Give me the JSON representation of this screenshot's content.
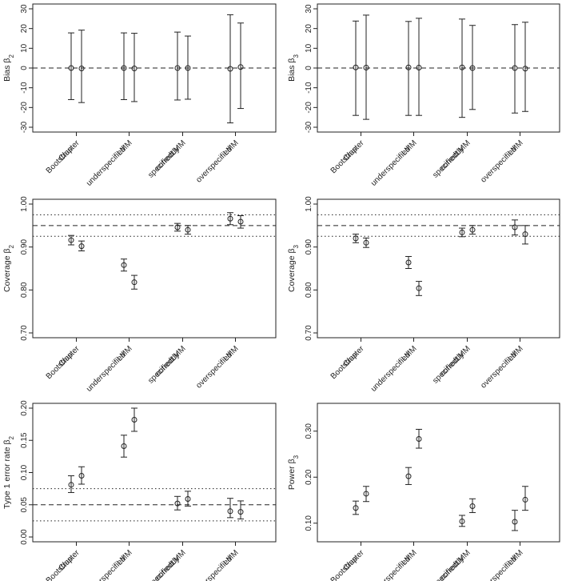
{
  "chart_data": [
    {
      "type": "errorbar",
      "ylabel": "Bias",
      "ysub": "2",
      "ylim": [
        -30,
        30
      ],
      "yticks": [
        -30,
        -20,
        -10,
        0,
        10,
        20,
        30
      ],
      "tick_labels": [
        "-30",
        "-20",
        "-10",
        "0",
        "10",
        "20",
        "30"
      ],
      "hlines": [
        {
          "y": 0,
          "style": "dashed"
        }
      ],
      "categories": [
        [
          "Cluster",
          "Bootstrap"
        ],
        [
          "LMM",
          "underspecified"
        ],
        [
          "LMM",
          "correctly",
          "specified"
        ],
        [
          "LMM",
          "overspecified"
        ]
      ],
      "points": [
        {
          "est": 0.0,
          "lo": -16.0,
          "hi": 17.8
        },
        {
          "est": -0.2,
          "lo": -17.5,
          "hi": 19.2
        },
        {
          "est": 0.0,
          "lo": -16.0,
          "hi": 17.8
        },
        {
          "est": -0.2,
          "lo": -17.0,
          "hi": 17.6
        },
        {
          "est": 0.0,
          "lo": -16.2,
          "hi": 18.2
        },
        {
          "est": 0.0,
          "lo": -15.8,
          "hi": 16.2
        },
        {
          "est": -0.4,
          "lo": -27.8,
          "hi": 27.0
        },
        {
          "est": 0.5,
          "lo": -20.5,
          "hi": 22.8
        }
      ]
    },
    {
      "type": "errorbar",
      "ylabel": "Bias",
      "ysub": "3",
      "ylim": [
        -30,
        30
      ],
      "yticks": [
        -30,
        -20,
        -10,
        0,
        10,
        20,
        30
      ],
      "tick_labels": [
        "-30",
        "-20",
        "-10",
        "0",
        "10",
        "20",
        "30"
      ],
      "hlines": [
        {
          "y": 0,
          "style": "dashed"
        }
      ],
      "categories": [
        [
          "Cluster",
          "Bootstrap"
        ],
        [
          "LMM",
          "underspecified"
        ],
        [
          "LMM",
          "correctly",
          "specified"
        ],
        [
          "LMM",
          "overspecified"
        ]
      ],
      "points": [
        {
          "est": 0.3,
          "lo": -24.0,
          "hi": 23.8
        },
        {
          "est": 0.2,
          "lo": -26.0,
          "hi": 26.8
        },
        {
          "est": 0.3,
          "lo": -24.0,
          "hi": 23.6
        },
        {
          "est": 0.2,
          "lo": -24.0,
          "hi": 25.2
        },
        {
          "est": 0.3,
          "lo": -25.0,
          "hi": 24.8
        },
        {
          "est": 0.0,
          "lo": -21.0,
          "hi": 21.6
        },
        {
          "est": 0.0,
          "lo": -22.8,
          "hi": 22.0
        },
        {
          "est": -0.3,
          "lo": -22.0,
          "hi": 23.2
        }
      ]
    },
    {
      "type": "errorbar",
      "ylabel": "Coverage",
      "ysub": "2",
      "ylim": [
        0.7,
        1.0
      ],
      "yticks": [
        0.7,
        0.8,
        0.9,
        1.0
      ],
      "tick_labels": [
        "0.70",
        "0.80",
        "0.90",
        "1.00"
      ],
      "hlines": [
        {
          "y": 0.95,
          "style": "dashed"
        },
        {
          "y": 0.975,
          "style": "dotted"
        },
        {
          "y": 0.925,
          "style": "dotted"
        }
      ],
      "categories": [
        [
          "Cluster",
          "Bootstrap"
        ],
        [
          "LMM",
          "underspecified"
        ],
        [
          "LMM",
          "correctly",
          "specified"
        ],
        [
          "LMM",
          "overspecified"
        ]
      ],
      "points": [
        {
          "est": 0.916,
          "lo": 0.905,
          "hi": 0.927
        },
        {
          "est": 0.902,
          "lo": 0.891,
          "hi": 0.914
        },
        {
          "est": 0.858,
          "lo": 0.844,
          "hi": 0.872
        },
        {
          "est": 0.818,
          "lo": 0.802,
          "hi": 0.834
        },
        {
          "est": 0.946,
          "lo": 0.937,
          "hi": 0.955
        },
        {
          "est": 0.94,
          "lo": 0.93,
          "hi": 0.95
        },
        {
          "est": 0.966,
          "lo": 0.952,
          "hi": 0.98
        },
        {
          "est": 0.959,
          "lo": 0.944,
          "hi": 0.973
        }
      ]
    },
    {
      "type": "errorbar",
      "ylabel": "Coverage",
      "ysub": "3",
      "ylim": [
        0.7,
        1.0
      ],
      "yticks": [
        0.7,
        0.8,
        0.9,
        1.0
      ],
      "tick_labels": [
        "0.70",
        "0.80",
        "0.90",
        "1.00"
      ],
      "hlines": [
        {
          "y": 0.95,
          "style": "dashed"
        },
        {
          "y": 0.975,
          "style": "dotted"
        },
        {
          "y": 0.925,
          "style": "dotted"
        }
      ],
      "categories": [
        [
          "Cluster",
          "Bootstrap"
        ],
        [
          "LMM",
          "underspecified"
        ],
        [
          "LMM",
          "correctly",
          "specified"
        ],
        [
          "LMM",
          "overspecified"
        ]
      ],
      "points": [
        {
          "est": 0.92,
          "lo": 0.91,
          "hi": 0.93
        },
        {
          "est": 0.91,
          "lo": 0.899,
          "hi": 0.921
        },
        {
          "est": 0.864,
          "lo": 0.85,
          "hi": 0.878
        },
        {
          "est": 0.804,
          "lo": 0.787,
          "hi": 0.82
        },
        {
          "est": 0.934,
          "lo": 0.924,
          "hi": 0.944
        },
        {
          "est": 0.94,
          "lo": 0.93,
          "hi": 0.95
        },
        {
          "est": 0.946,
          "lo": 0.928,
          "hi": 0.963
        },
        {
          "est": 0.93,
          "lo": 0.907,
          "hi": 0.95
        }
      ]
    },
    {
      "type": "errorbar",
      "ylabel": "Type 1 error rate",
      "ysub": "2",
      "ylim": [
        0.0,
        0.2
      ],
      "yticks": [
        0.0,
        0.05,
        0.1,
        0.15,
        0.2
      ],
      "tick_labels": [
        "0.00",
        "0.05",
        "0.10",
        "0.15",
        "0.20"
      ],
      "hlines": [
        {
          "y": 0.05,
          "style": "dashed"
        },
        {
          "y": 0.075,
          "style": "dotted"
        },
        {
          "y": 0.025,
          "style": "dotted"
        }
      ],
      "categories": [
        [
          "Cluster",
          "Bootstrap"
        ],
        [
          "LMM",
          "underspecified"
        ],
        [
          "LMM",
          "correctly",
          "specified"
        ],
        [
          "LMM",
          "overspecified"
        ]
      ],
      "points": [
        {
          "est": 0.081,
          "lo": 0.069,
          "hi": 0.095
        },
        {
          "est": 0.095,
          "lo": 0.082,
          "hi": 0.109
        },
        {
          "est": 0.141,
          "lo": 0.124,
          "hi": 0.158
        },
        {
          "est": 0.182,
          "lo": 0.164,
          "hi": 0.2
        },
        {
          "est": 0.052,
          "lo": 0.042,
          "hi": 0.063
        },
        {
          "est": 0.059,
          "lo": 0.048,
          "hi": 0.071
        },
        {
          "est": 0.04,
          "lo": 0.03,
          "hi": 0.06
        },
        {
          "est": 0.039,
          "lo": 0.028,
          "hi": 0.056
        }
      ]
    },
    {
      "type": "errorbar",
      "ylabel": "Power",
      "ysub": "3",
      "ylim": [
        0.07,
        0.35
      ],
      "yticks": [
        0.1,
        0.2,
        0.3
      ],
      "tick_labels": [
        "0.10",
        "0.20",
        "0.30"
      ],
      "hlines": [],
      "categories": [
        [
          "Cluster",
          "Bootstrap"
        ],
        [
          "LMM",
          "underspecified"
        ],
        [
          "LMM",
          "correctly",
          "specified"
        ],
        [
          "LMM",
          "overspecified"
        ]
      ],
      "points": [
        {
          "est": 0.133,
          "lo": 0.119,
          "hi": 0.148
        },
        {
          "est": 0.164,
          "lo": 0.147,
          "hi": 0.18
        },
        {
          "est": 0.202,
          "lo": 0.184,
          "hi": 0.221
        },
        {
          "est": 0.283,
          "lo": 0.263,
          "hi": 0.304
        },
        {
          "est": 0.104,
          "lo": 0.093,
          "hi": 0.117
        },
        {
          "est": 0.137,
          "lo": 0.123,
          "hi": 0.153
        },
        {
          "est": 0.103,
          "lo": 0.084,
          "hi": 0.128
        },
        {
          "est": 0.151,
          "lo": 0.128,
          "hi": 0.18
        }
      ]
    }
  ]
}
